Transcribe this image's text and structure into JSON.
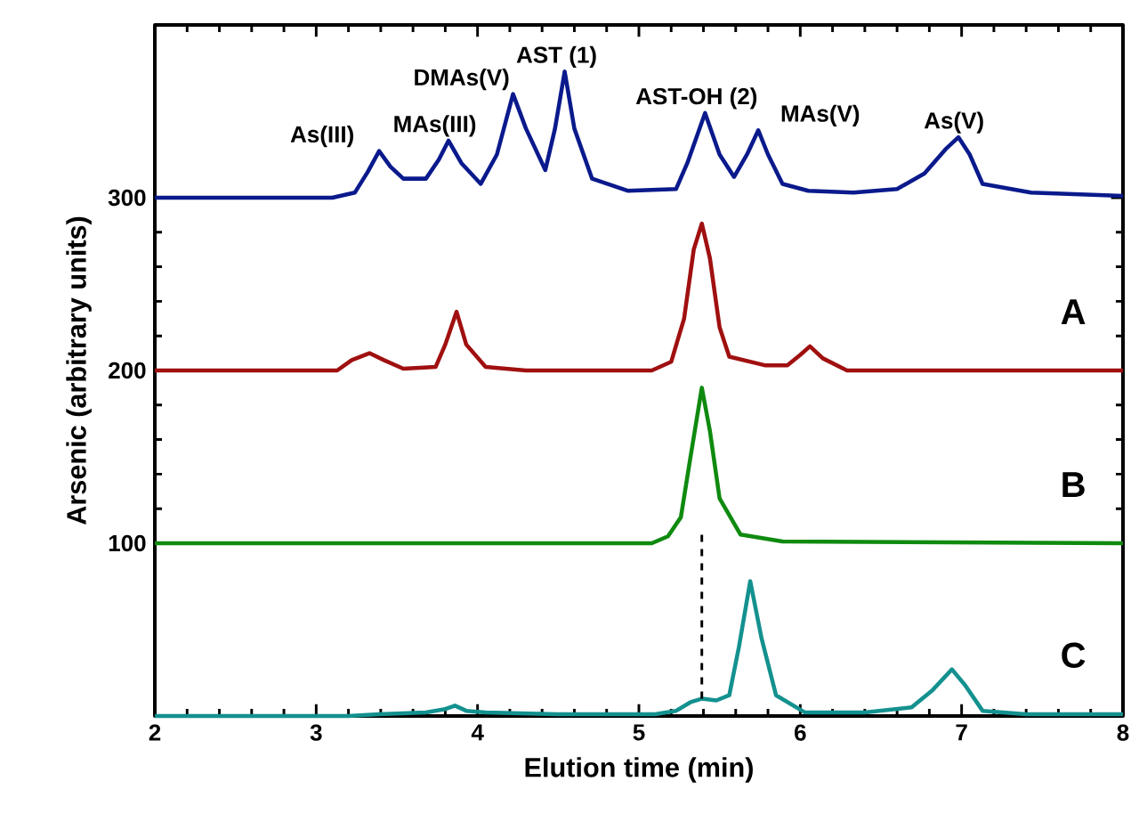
{
  "chart_data": {
    "type": "line",
    "xlabel": "Elution time (min)",
    "ylabel": "Arsenic (arbitrary units)",
    "xlim": [
      2,
      8
    ],
    "ylim": [
      0,
      400
    ],
    "xticks": [
      2,
      3,
      4,
      5,
      6,
      7,
      8
    ],
    "yticks": [
      100,
      200,
      300
    ],
    "grid": false,
    "series": [
      {
        "color": "#0a1a8c",
        "x": [
          2,
          3.1,
          3.24,
          3.32,
          3.39,
          3.46,
          3.54,
          3.68,
          3.76,
          3.82,
          3.9,
          4.02,
          4.12,
          4.22,
          4.3,
          4.42,
          4.48,
          4.54,
          4.6,
          4.71,
          4.93,
          5.23,
          5.3,
          5.41,
          5.5,
          5.59,
          5.67,
          5.74,
          5.8,
          5.89,
          6.05,
          6.33,
          6.6,
          6.77,
          6.9,
          6.98,
          7.05,
          7.13,
          7.43,
          8
        ],
        "values": [
          300,
          300,
          303,
          315,
          327,
          318,
          311,
          311,
          322,
          333,
          320,
          308,
          325,
          360,
          340,
          316,
          340,
          373,
          340,
          311,
          304,
          305,
          320,
          349,
          325,
          312,
          325,
          339,
          325,
          308,
          304,
          303,
          305,
          314,
          328,
          335,
          325,
          308,
          303,
          301
        ]
      },
      {
        "name": "A",
        "color": "#a01010",
        "x": [
          2,
          3.13,
          3.22,
          3.33,
          3.42,
          3.54,
          3.74,
          3.8,
          3.87,
          3.93,
          4.05,
          4.3,
          5.08,
          5.2,
          5.28,
          5.34,
          5.39,
          5.44,
          5.5,
          5.56,
          5.78,
          5.92,
          6.0,
          6.06,
          6.14,
          6.29,
          8
        ],
        "values": [
          200,
          200,
          206,
          210,
          206,
          201,
          202,
          215,
          234,
          215,
          202,
          200,
          200,
          205,
          230,
          270,
          285,
          265,
          225,
          208,
          203,
          203,
          209,
          214,
          207,
          200,
          200
        ]
      },
      {
        "name": "B",
        "color": "#0f8a0f",
        "x": [
          2,
          5.08,
          5.18,
          5.26,
          5.32,
          5.39,
          5.44,
          5.5,
          5.63,
          5.89,
          8
        ],
        "values": [
          100,
          100,
          104,
          115,
          150,
          190,
          165,
          126,
          105,
          101,
          100
        ]
      },
      {
        "name": "C",
        "color": "#13918f",
        "x": [
          2,
          3.2,
          3.39,
          3.68,
          3.8,
          3.86,
          3.93,
          4.05,
          4.49,
          5.1,
          5.23,
          5.32,
          5.39,
          5.48,
          5.56,
          5.62,
          5.69,
          5.76,
          5.85,
          6.03,
          6.4,
          6.69,
          6.82,
          6.94,
          7.02,
          7.13,
          7.4,
          8
        ],
        "values": [
          0,
          0,
          1,
          2,
          4,
          6,
          3,
          2,
          1,
          1,
          3,
          8,
          10,
          9,
          12,
          40,
          78,
          45,
          12,
          2,
          2,
          5,
          15,
          27,
          18,
          3,
          1,
          1
        ]
      },
      {
        "type": "line",
        "line_style": "dashed",
        "color": "#000000",
        "x": [
          5.39,
          5.39
        ],
        "values": [
          10,
          108
        ]
      }
    ],
    "annotations": [
      {
        "text": "As(III)",
        "x": 3.39,
        "y": 327
      },
      {
        "text": "MAs(III)",
        "x": 3.82,
        "y": 333
      },
      {
        "text": "DMAs(V)",
        "x": 4.22,
        "y": 360
      },
      {
        "text": "AST (1)",
        "x": 4.54,
        "y": 373
      },
      {
        "text": "AST-OH (2)",
        "x": 5.41,
        "y": 349
      },
      {
        "text": "MAs(V)",
        "x": 5.74,
        "y": 339
      },
      {
        "text": "As(V)",
        "x": 6.98,
        "y": 335
      }
    ]
  }
}
